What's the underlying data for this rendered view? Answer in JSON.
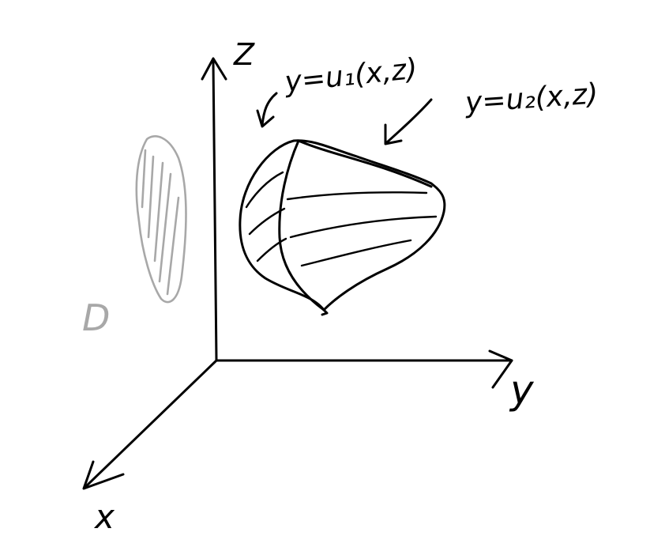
{
  "axes": {
    "z_label": "Z",
    "y_label": "y",
    "x_label": "x"
  },
  "annotations": {
    "lower_surface": "y=u₁(x,z)",
    "upper_surface": "y=u₂(x,z)",
    "projection_region": "D"
  },
  "colors": {
    "ink": "#000000",
    "projection": "#a8a8a8",
    "background": "#ffffff"
  }
}
